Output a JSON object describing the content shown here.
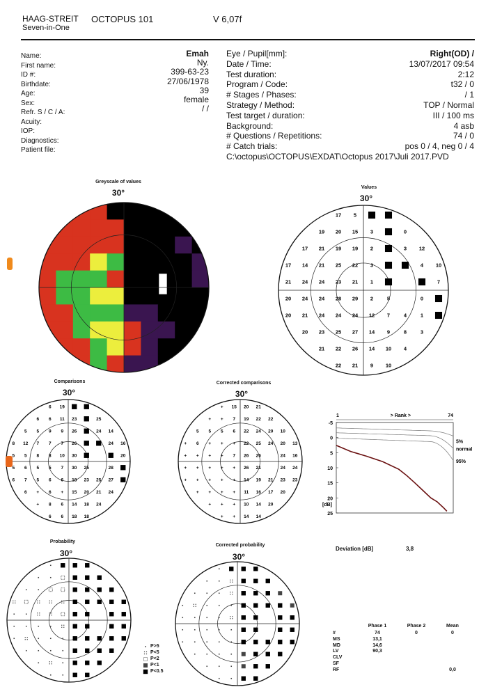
{
  "header": {
    "brand_line1": "HAAG-STREIT",
    "brand_line2": "Seven-in-One",
    "device": "OCTOPUS 101",
    "version": "V 6,07f"
  },
  "patient": {
    "labels": [
      "Name:",
      "First name:",
      "ID #:",
      "Birthdate:",
      "Age:",
      "Sex:",
      "Refr. S / C / A:",
      "Acuity:",
      "IOP:",
      "Diagnostics:",
      "Patient file:"
    ],
    "values": [
      "Emah",
      "Ny.",
      "399-63-23",
      "27/06/1978",
      "39",
      "female",
      "/ /"
    ]
  },
  "exam": {
    "labels": [
      "Eye / Pupil[mm]:",
      "Date / Time:",
      "Test duration:",
      "Program / Code:",
      "# Stages / Phases:",
      "Strategy / Method:",
      "Test target / duration:",
      "Background:",
      "# Questions / Repetitions:",
      "# Catch trials:"
    ],
    "values": [
      "Right(OD) /",
      "13/07/2017  09:54",
      "2:12",
      "t32 / 0",
      "/ 1",
      "TOP / Normal",
      "III / 100 ms",
      "4 asb",
      "74 / 0",
      "pos 0 / 4, neg 0 / 4"
    ],
    "patient_file": "C:\\octopus\\OCTOPUS\\EXDAT\\Octopus 2017\\Juli 2017.PVD"
  },
  "plots": {
    "greyscale_title": "Greyscale of values",
    "values_title": "Values",
    "comparisons_title": "Comparisons",
    "corrected_comparisons_title": "Corrected comparisons",
    "probability_title": "Probability",
    "corrected_probability_title": "Corrected probability",
    "degree": "30°"
  },
  "values_grid": [
    [
      null,
      null,
      null,
      "17",
      "5",
      "B",
      "B",
      null,
      null,
      null
    ],
    [
      null,
      null,
      "19",
      "20",
      "15",
      "3",
      "B",
      "0",
      null,
      null
    ],
    [
      null,
      "17",
      "21",
      "19",
      "19",
      "2",
      "B",
      "3",
      "12",
      null
    ],
    [
      "17",
      "14",
      "21",
      "25",
      "22",
      "3",
      "B",
      "B",
      "4",
      "10"
    ],
    [
      "21",
      "24",
      "24",
      "23",
      "21",
      "1",
      "B",
      null,
      "B",
      "7"
    ],
    [
      "20",
      "24",
      "24",
      "28",
      "29",
      "2",
      "5",
      null,
      "0",
      "B"
    ],
    [
      "20",
      "21",
      "24",
      "24",
      "24",
      "12",
      "7",
      "4",
      "1",
      "B"
    ],
    [
      null,
      "20",
      "23",
      "25",
      "27",
      "14",
      "9",
      "8",
      "3",
      null
    ],
    [
      null,
      null,
      "21",
      "22",
      "26",
      "14",
      "10",
      "4",
      null,
      null
    ],
    [
      null,
      null,
      null,
      "22",
      "21",
      "9",
      "10",
      null,
      null,
      null
    ]
  ],
  "comparisons_grid": [
    [
      null,
      null,
      null,
      "6",
      "19",
      "B",
      "B",
      null,
      null,
      null
    ],
    [
      null,
      null,
      "6",
      "6",
      "11",
      "23",
      "B",
      "25",
      null,
      null
    ],
    [
      null,
      "5",
      "5",
      "9",
      "9",
      "26",
      "B",
      "24",
      "14",
      null
    ],
    [
      "8",
      "12",
      "7",
      "7",
      "7",
      "26",
      "B",
      "B",
      "24",
      "16"
    ],
    [
      "5",
      "5",
      "8",
      "8",
      "10",
      "30",
      "B",
      null,
      "B",
      "20"
    ],
    [
      "5",
      "6",
      "5",
      "5",
      "7",
      "30",
      "25",
      null,
      "28",
      "B"
    ],
    [
      "6",
      "7",
      "5",
      "6",
      "6",
      "18",
      "23",
      "25",
      "27",
      "B"
    ],
    [
      null,
      "6",
      "+",
      "6",
      "+",
      "15",
      "20",
      "21",
      "24",
      null
    ],
    [
      null,
      null,
      "+",
      "8",
      "6",
      "14",
      "18",
      "24",
      null,
      null
    ],
    [
      null,
      null,
      null,
      "6",
      "6",
      "18",
      "18",
      null,
      null,
      null
    ]
  ],
  "corrected_grid": [
    [
      null,
      null,
      null,
      "+",
      "15",
      "20",
      "21",
      null,
      null,
      null
    ],
    [
      null,
      null,
      "+",
      "+",
      "7",
      "19",
      "22",
      "22",
      null,
      null
    ],
    [
      null,
      "5",
      "5",
      "5",
      "6",
      "22",
      "24",
      "20",
      "10",
      null
    ],
    [
      "+",
      "6",
      "+",
      "+",
      "+",
      "22",
      "25",
      "24",
      "20",
      "13"
    ],
    [
      "+",
      "+",
      "+",
      "+",
      "7",
      "26",
      "26",
      null,
      "24",
      "16"
    ],
    [
      "+",
      "+",
      "+",
      "+",
      "+",
      "26",
      "21",
      null,
      "24",
      "24"
    ],
    [
      "+",
      "+",
      "+",
      "+",
      "+",
      "14",
      "19",
      "21",
      "23",
      "23"
    ],
    [
      null,
      "+",
      "+",
      "+",
      "+",
      "11",
      "16",
      "17",
      "20",
      null
    ],
    [
      null,
      null,
      "+",
      "+",
      "+",
      "10",
      "14",
      "20",
      null,
      null
    ],
    [
      null,
      null,
      null,
      "+",
      "+",
      "14",
      "14",
      null,
      null,
      null
    ]
  ],
  "curve": {
    "rank_label": "> Rank >",
    "rank_start": "1",
    "rank_end": "74",
    "y_ticks": [
      "-5",
      "0",
      "5",
      "10",
      "15",
      "20",
      "25"
    ],
    "y_unit": "[dB]",
    "label_5": "5%",
    "label_normal": "normal",
    "label_95": "95%",
    "chart_data": {
      "type": "line",
      "title": "",
      "xlabel": "> Rank >",
      "ylabel": "[dB]",
      "xlim": [
        1,
        74
      ],
      "ylim": [
        -5,
        25
      ],
      "series": [
        {
          "x": [
            1,
            10,
            20,
            30,
            40,
            45,
            50,
            55,
            60,
            64,
            66,
            68,
            70
          ],
          "y": [
            2.6,
            4.6,
            6.2,
            8.0,
            10.5,
            12.6,
            15.0,
            17.5,
            20.0,
            21.3,
            22.3,
            23.3,
            24.4
          ]
        }
      ]
    }
  },
  "deviation": {
    "label": "Deviation [dB]",
    "value": "3,8"
  },
  "legend": [
    "P>5",
    "P<5",
    "P<2",
    "P<1",
    "P<0.5"
  ],
  "stats": {
    "headers": [
      "Phase 1",
      "Phase 2",
      "Mean"
    ],
    "rows": [
      {
        "label": "#",
        "p1": "74",
        "p2": "0",
        "mean": "0"
      },
      {
        "label": "MS",
        "p1": "13,1",
        "p2": "",
        "mean": ""
      },
      {
        "label": "MD",
        "p1": "14,6",
        "p2": "",
        "mean": ""
      },
      {
        "label": "LV",
        "p1": "90,3",
        "p2": "",
        "mean": ""
      },
      {
        "label": "CLV",
        "p1": "",
        "p2": "",
        "mean": ""
      },
      {
        "label": "SF",
        "p1": "",
        "p2": "",
        "mean": ""
      },
      {
        "label": "RF",
        "p1": "",
        "p2": "",
        "mean": "0,0"
      }
    ]
  },
  "colors": {
    "red": "#d8331f",
    "green": "#3dbb44",
    "yellow": "#ecee3d",
    "black": "#000000",
    "purple": "#3a1550"
  }
}
